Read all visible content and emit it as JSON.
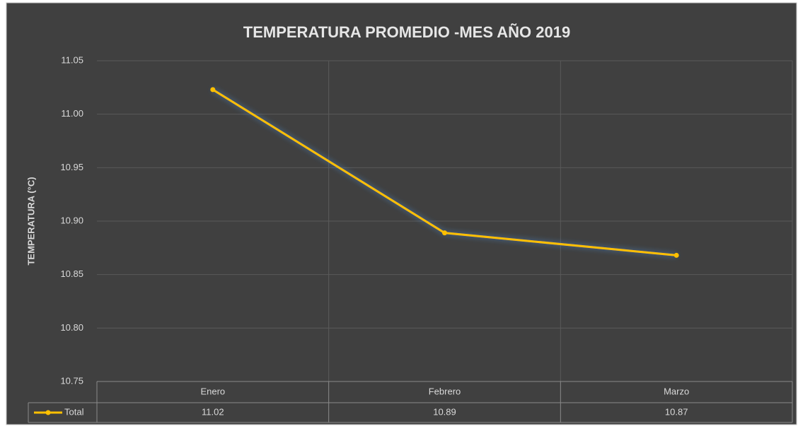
{
  "chart_data": {
    "type": "line",
    "title": "TEMPERATURA PROMEDIO -MES  AÑO 2019",
    "y_label": "TEMPERATURA (°C)",
    "categories": [
      "Enero",
      "Febrero",
      "Marzo"
    ],
    "series": [
      {
        "name": "Total",
        "color": "#ffc000",
        "values": [
          11.023,
          10.889,
          10.868
        ],
        "value_labels": [
          "11.02",
          "10.89",
          "10.87"
        ]
      }
    ],
    "ylim": [
      10.75,
      11.05
    ],
    "yticks": [
      {
        "value": 10.75,
        "label": "10.75"
      },
      {
        "value": 10.8,
        "label": "10.80"
      },
      {
        "value": 10.85,
        "label": "10.85"
      },
      {
        "value": 10.9,
        "label": "10.90"
      },
      {
        "value": 10.95,
        "label": "10.95"
      },
      {
        "value": 11.0,
        "label": "11.00"
      },
      {
        "value": 11.05,
        "label": "11.05"
      }
    ],
    "grid": true,
    "data_table": true
  }
}
